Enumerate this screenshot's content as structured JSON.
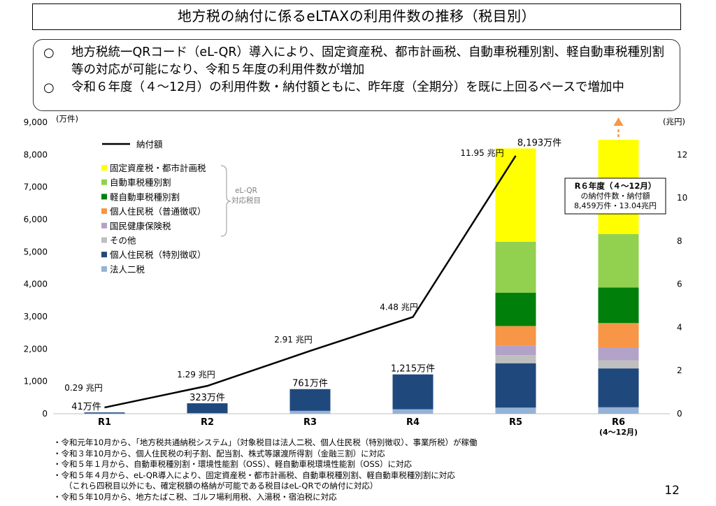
{
  "title": "地方税の納付に係るeLTAXの利用件数の推移（税目別）",
  "summary": [
    {
      "mark": "○",
      "text": "地方税統一QRコード（eL-QR）導入により、固定資産税、都市計画税、自動車税種別割、軽自動車税種別割等の対応が可能になり、令和５年度の利用件数が増加"
    },
    {
      "mark": "○",
      "text": "令和６年度（４～12月）の利用件数・納付額ともに、昨年度（全期分）を既に上回るペースで増加中"
    }
  ],
  "chart_data": {
    "type": "bar",
    "stacked": true,
    "categories": [
      "R1",
      "R2",
      "R3",
      "R4",
      "R5",
      "R6"
    ],
    "category_sublabels": [
      "",
      "",
      "",
      "",
      "",
      "(4～12月)"
    ],
    "y_left": {
      "unit": "(万件)",
      "min": 0,
      "max": 9000,
      "ticks": [
        0,
        1000,
        2000,
        3000,
        4000,
        5000,
        6000,
        7000,
        8000,
        9000
      ],
      "tick_labels": [
        "0",
        "1,000",
        "2,000",
        "3,000",
        "4,000",
        "5,000",
        "6,000",
        "7,000",
        "8,000",
        "9,000"
      ]
    },
    "y_right": {
      "unit": "(兆円)",
      "min": 0,
      "max": 13.5,
      "ticks": [
        0,
        2,
        4,
        6,
        8,
        10,
        12
      ],
      "tick_labels": [
        "0",
        "2",
        "4",
        "6",
        "8",
        "10",
        "12"
      ]
    },
    "series": [
      {
        "name": "法人二税",
        "color": "#95b3d7",
        "values": [
          10,
          22,
          90,
          140,
          190,
          200
        ]
      },
      {
        "name": "個人住民税（特別徴収）",
        "color": "#1f497d",
        "values": [
          31,
          301,
          671,
          1075,
          1370,
          1200
        ]
      },
      {
        "name": "その他",
        "color": "#bfbfbf",
        "values": [
          0,
          0,
          0,
          0,
          250,
          250
        ]
      },
      {
        "name": "国民健康保険税",
        "color": "#b3a2c7",
        "values": [
          0,
          0,
          0,
          0,
          300,
          400
        ]
      },
      {
        "name": "個人住民税（普通徴収）",
        "color": "#f79646",
        "values": [
          0,
          0,
          0,
          0,
          600,
          750
        ]
      },
      {
        "name": "軽自動車税種別割",
        "color": "#00800a",
        "values": [
          0,
          0,
          0,
          0,
          1030,
          1100
        ]
      },
      {
        "name": "自動車税種別割",
        "color": "#92d050",
        "values": [
          0,
          0,
          0,
          0,
          1570,
          1650
        ]
      },
      {
        "name": "固定資産税・都市計画税",
        "color": "#ffff00",
        "values": [
          0,
          0,
          0,
          0,
          2883,
          2909
        ]
      }
    ],
    "totals": [
      41,
      323,
      761,
      1215,
      8193,
      8459
    ],
    "total_labels": [
      "41万件",
      "323万件",
      "761万件",
      "1,215万件",
      "8,193万件",
      ""
    ],
    "line": {
      "name": "納付額",
      "color": "#000000",
      "values": [
        0.29,
        1.29,
        2.91,
        4.48,
        11.95
      ],
      "labels": [
        "0.29 兆円",
        "1.29 兆円",
        "2.91 兆円",
        "4.48 兆円",
        "11.95 兆円"
      ]
    },
    "legend": {
      "placement": "top-left",
      "line_label": "納付額",
      "items": [
        "固定資産税・都市計画税",
        "自動車税種別割",
        "軽自動車税種別割",
        "個人住民税（普通徴収）",
        "国民健康保険税",
        "その他",
        "個人住民税（特別徴収）",
        "法人二税"
      ],
      "colors": [
        "#ffff00",
        "#92d050",
        "#00800a",
        "#f79646",
        "#b3a2c7",
        "#bfbfbf",
        "#1f497d",
        "#95b3d7"
      ],
      "bracket_label": [
        "eL-QR",
        "対応税目"
      ]
    },
    "callout": {
      "lines": [
        "R６年度（４～12月）",
        "の納付件数・納付額",
        "8,459万件・13.04兆円"
      ]
    },
    "arrow_color": "#f79646"
  },
  "notes": [
    {
      "text": "・令和元年10月から、「地方税共通納税システム」（対象税目は法人二税、個人住民税（特別徴収）、事業所税）が稼働"
    },
    {
      "text": "・令和３年10月から、個人住民税の利子割、配当割、株式等譲渡所得割（金融三割）に対応"
    },
    {
      "text": "・令和５年１月から、自動車税種別割・環境性能割（OSS）、軽自動車税環境性能割（OSS）に対応"
    },
    {
      "text": "・令和５年４月から、eL-QR導入により、固定資産税・都市計画税、自動車税種別割、軽自動車税種別割に対応",
      "sub": "（これら四税目以外にも、確定税額の格納が可能である税目はeL-QRでの納付に対応）"
    },
    {
      "text": "・令和５年10月から、地方たばこ税、ゴルフ場利用税、入湯税・宿泊税に対応"
    }
  ],
  "page_number": "12"
}
